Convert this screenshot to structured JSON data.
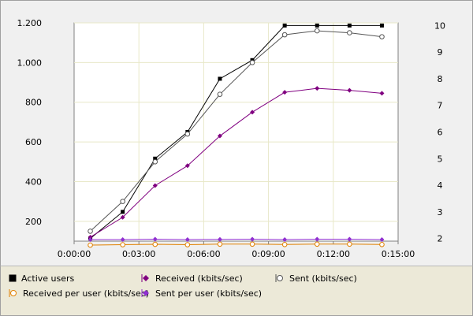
{
  "chart_data": {
    "type": "line",
    "x_unit": "h:mm:ss",
    "x": [
      "0:00:45",
      "0:02:15",
      "0:03:45",
      "0:05:15",
      "0:06:45",
      "0:08:15",
      "0:09:45",
      "0:11:15",
      "0:12:45",
      "0:14:15"
    ],
    "xticks": [
      "0:00:00",
      "0:03:00",
      "0:06:00",
      "0:09:00",
      "0:12:00",
      "0:15:00"
    ],
    "xlim": [
      "0:00:00",
      "0:15:00"
    ],
    "y_left_ticks": [
      "1.200",
      "1.000",
      "800",
      "600",
      "400",
      "200"
    ],
    "y_left_tick_values": [
      1200,
      1000,
      800,
      600,
      400,
      200
    ],
    "y_left_lim": [
      100,
      1200
    ],
    "y_right_ticks": [
      "10",
      "9",
      "8",
      "7",
      "6",
      "5",
      "4",
      "3",
      "2"
    ],
    "y_right_tick_values": [
      10,
      9,
      8,
      7,
      6,
      5,
      4,
      3,
      2
    ],
    "y_right_lim": [
      1.9,
      10.1
    ],
    "grid": true,
    "series": [
      {
        "name": "Active users",
        "axis": "right",
        "color": "#000000",
        "marker": "filled-square",
        "values": [
          2.0,
          3.0,
          5.0,
          6.0,
          8.0,
          8.7,
          10.0,
          10.0,
          10.0,
          10.0
        ]
      },
      {
        "name": "Received (kbits/sec)",
        "axis": "left",
        "color": "#800080",
        "marker": "filled-diamond",
        "values": [
          120,
          220,
          380,
          480,
          630,
          750,
          850,
          870,
          860,
          845
        ]
      },
      {
        "name": "Sent (kbits/sec)",
        "axis": "left",
        "color": "#555555",
        "marker": "open-circle",
        "values": [
          150,
          300,
          500,
          640,
          840,
          1000,
          1140,
          1160,
          1150,
          1130
        ]
      },
      {
        "name": "Received per user (kbits/sec)",
        "axis": "left",
        "color": "#e08000",
        "marker": "open-circle",
        "values": [
          80,
          82,
          84,
          82,
          85,
          85,
          83,
          85,
          85,
          83
        ]
      },
      {
        "name": "Sent per user (kbits/sec)",
        "axis": "left",
        "color": "#9030d0",
        "marker": "filled-diamond",
        "values": [
          108,
          108,
          110,
          108,
          109,
          110,
          108,
          110,
          110,
          108
        ]
      }
    ]
  },
  "legend": [
    {
      "label": "Active users",
      "icon": "filled-square-icon"
    },
    {
      "label": "Received (kbits/sec)",
      "icon": "filled-diamond-icon"
    },
    {
      "label": "Sent (kbits/sec)",
      "icon": "open-circle-icon"
    },
    {
      "label": "Received per user (kbits/sec)",
      "icon": "open-circle-icon"
    },
    {
      "label": "Sent per user (kbits/sec)",
      "icon": "filled-diamond-icon"
    }
  ]
}
